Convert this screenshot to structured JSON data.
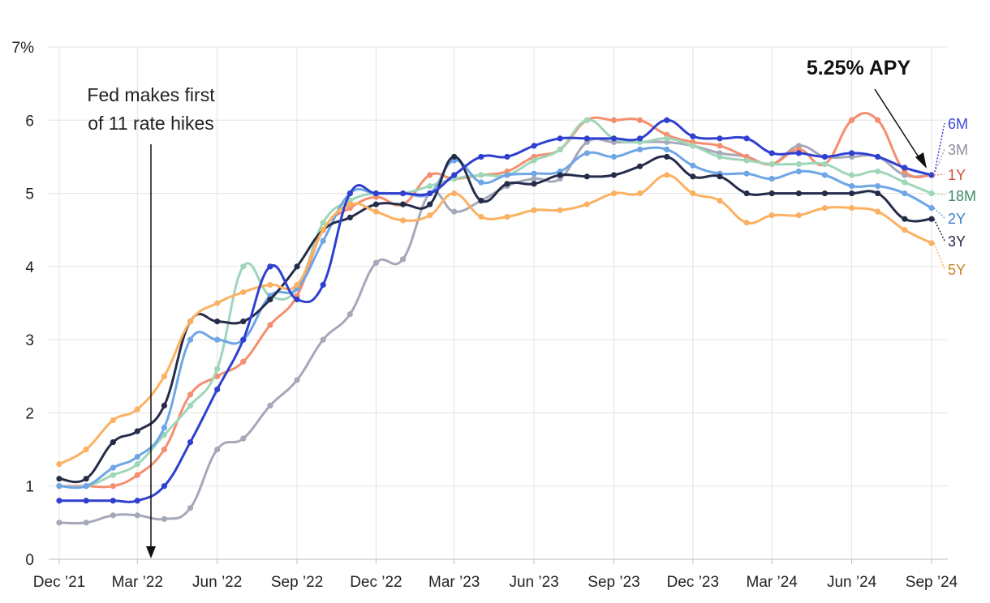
{
  "chart_data": {
    "type": "line",
    "title": "",
    "xlabel": "",
    "ylabel": "",
    "ylim": [
      0,
      7
    ],
    "xlim": [
      "2021-12-01",
      "2024-09-01"
    ],
    "grid": true,
    "y_ticks": [
      "0",
      "1",
      "2",
      "3",
      "4",
      "5",
      "6",
      "7%"
    ],
    "x_ticks": [
      "Dec ’21",
      "Mar ’22",
      "Jun ’22",
      "Sep ’22",
      "Dec ’22",
      "Mar ’23",
      "Jun ’23",
      "Sep ’23",
      "Dec ’23",
      "Mar ’24",
      "Jun ’24",
      "Sep ’24"
    ],
    "x": [
      "2021-12-01",
      "2022-01-01",
      "2022-02-01",
      "2022-03-01",
      "2022-04-01",
      "2022-05-01",
      "2022-06-01",
      "2022-07-01",
      "2022-08-01",
      "2022-09-01",
      "2022-10-01",
      "2022-11-01",
      "2022-12-01",
      "2023-01-01",
      "2023-02-01",
      "2023-03-01",
      "2023-04-01",
      "2023-05-01",
      "2023-06-01",
      "2023-07-01",
      "2023-08-01",
      "2023-09-01",
      "2023-10-01",
      "2023-11-01",
      "2023-12-01",
      "2024-01-01",
      "2024-02-01",
      "2024-03-01",
      "2024-04-01",
      "2024-05-01",
      "2024-06-01",
      "2024-07-01",
      "2024-08-01",
      "2024-09-01"
    ],
    "series": [
      {
        "name": "3M",
        "color": "#a5a8b8",
        "values": [
          0.5,
          0.5,
          0.6,
          0.6,
          0.55,
          0.7,
          1.5,
          1.65,
          2.1,
          2.45,
          3.0,
          3.35,
          4.05,
          4.1,
          5.0,
          4.75,
          4.9,
          5.1,
          5.2,
          5.2,
          5.7,
          5.7,
          5.7,
          5.7,
          5.65,
          5.55,
          5.5,
          5.4,
          5.65,
          5.5,
          5.5,
          5.5,
          5.25,
          5.25
        ]
      },
      {
        "name": "1Y",
        "color": "#f58e6e",
        "values": [
          1.0,
          1.0,
          1.0,
          1.15,
          1.5,
          2.25,
          2.5,
          2.7,
          3.2,
          3.6,
          4.5,
          4.8,
          4.95,
          4.85,
          5.25,
          5.2,
          5.25,
          5.3,
          5.5,
          5.6,
          6.0,
          6.0,
          6.0,
          5.8,
          5.7,
          5.65,
          5.5,
          5.4,
          5.6,
          5.4,
          6.0,
          6.0,
          5.3,
          5.25
        ]
      },
      {
        "name": "18M",
        "color": "#9fd6b8",
        "values": [
          1.0,
          1.0,
          1.15,
          1.3,
          1.7,
          2.1,
          2.6,
          4.0,
          3.6,
          3.7,
          4.6,
          4.9,
          5.0,
          5.0,
          5.1,
          5.2,
          5.25,
          5.25,
          5.45,
          5.6,
          6.0,
          5.75,
          5.7,
          5.75,
          5.65,
          5.5,
          5.45,
          5.4,
          5.4,
          5.4,
          5.25,
          5.3,
          5.15,
          5.0
        ]
      },
      {
        "name": "2Y",
        "color": "#6ea6e6",
        "values": [
          1.0,
          1.0,
          1.25,
          1.4,
          1.8,
          3.0,
          3.0,
          3.0,
          3.6,
          3.7,
          4.35,
          5.0,
          5.0,
          5.0,
          5.0,
          5.45,
          5.15,
          5.25,
          5.27,
          5.3,
          5.55,
          5.5,
          5.6,
          5.6,
          5.38,
          5.27,
          5.27,
          5.2,
          5.3,
          5.25,
          5.1,
          5.1,
          5.0,
          4.8
        ]
      },
      {
        "name": "3Y",
        "color": "#252c4a",
        "values": [
          1.1,
          1.1,
          1.6,
          1.75,
          2.1,
          3.25,
          3.25,
          3.25,
          3.55,
          4.0,
          4.5,
          4.67,
          4.85,
          4.85,
          4.85,
          5.5,
          4.9,
          5.13,
          5.13,
          5.25,
          5.23,
          5.25,
          5.37,
          5.5,
          5.23,
          5.23,
          5.0,
          5.0,
          5.0,
          5.0,
          5.0,
          5.0,
          4.65,
          4.65
        ]
      },
      {
        "name": "5Y",
        "color": "#fbb161",
        "values": [
          1.3,
          1.5,
          1.9,
          2.05,
          2.5,
          3.25,
          3.5,
          3.65,
          3.75,
          3.75,
          4.5,
          4.85,
          4.75,
          4.63,
          4.7,
          5.0,
          4.68,
          4.68,
          4.77,
          4.77,
          4.85,
          5.0,
          5.0,
          5.25,
          5.0,
          4.9,
          4.6,
          4.7,
          4.7,
          4.8,
          4.8,
          4.75,
          4.5,
          4.32
        ]
      },
      {
        "name": "6M",
        "color": "#2f3fd0",
        "values": [
          0.8,
          0.8,
          0.8,
          0.8,
          1.0,
          1.6,
          2.32,
          3.0,
          4.0,
          3.55,
          3.75,
          5.0,
          5.0,
          5.0,
          5.0,
          5.25,
          5.5,
          5.5,
          5.65,
          5.75,
          5.75,
          5.75,
          5.75,
          6.0,
          5.78,
          5.75,
          5.75,
          5.55,
          5.55,
          5.5,
          5.55,
          5.5,
          5.35,
          5.25
        ]
      }
    ],
    "annotations": [
      {
        "text_lines": [
          "Fed makes first",
          "of 11 rate hikes"
        ],
        "x": "2022-04-01"
      },
      {
        "text": "5.25% APY",
        "x": "2024-09-01",
        "y": 5.25
      }
    ]
  }
}
